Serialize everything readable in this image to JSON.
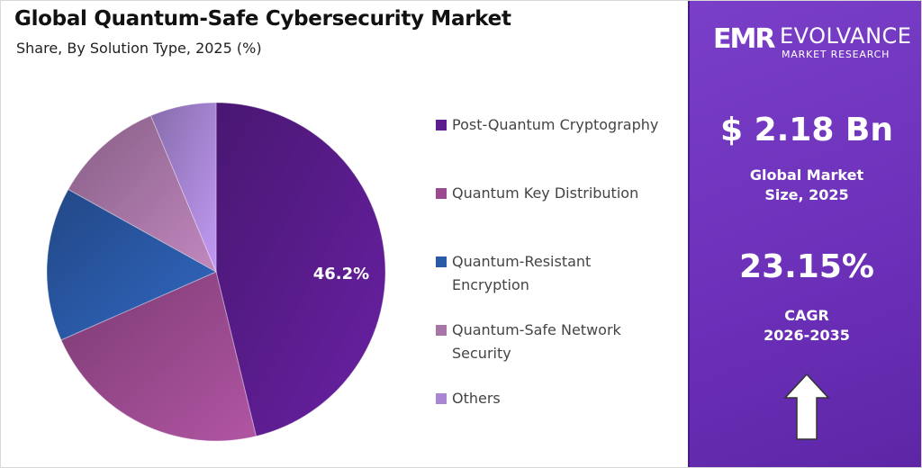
{
  "header": {
    "title": "Global Quantum-Safe Cybersecurity Market",
    "subtitle": "Share, By Solution Type, 2025 (%)"
  },
  "chart_data": {
    "type": "pie",
    "title": "Global Quantum-Safe Cybersecurity Market",
    "subtitle": "Share, By Solution Type, 2025 (%)",
    "categories": [
      "Post-Quantum Cryptography",
      "Quantum Key Distribution",
      "Quantum-Resistant Encryption",
      "Quantum-Safe Network Security",
      "Others"
    ],
    "values": [
      46.2,
      22.2,
      14.7,
      10.6,
      6.3
    ],
    "data_labels": [
      "46.2%",
      "",
      "",
      "",
      ""
    ],
    "colors": [
      "#5b1d8f",
      "#9a4a8e",
      "#2b5aa8",
      "#a876a6",
      "#a886d4"
    ],
    "legend_position": "right"
  },
  "legend": [
    {
      "label": "Post-Quantum Cryptography",
      "color": "#5b1d8f"
    },
    {
      "label": "Quantum Key Distribution",
      "color": "#9a4a8e"
    },
    {
      "label": "Quantum-Resistant Encryption",
      "color": "#2b5aa8"
    },
    {
      "label": "Quantum-Safe Network Security",
      "color": "#a876a6"
    },
    {
      "label": "Others",
      "color": "#a886d4"
    }
  ],
  "sidebar": {
    "logo": {
      "mark": "EMR",
      "name": "EVOLVANCE",
      "sub": "MARKET RESEARCH"
    },
    "market_size": "$ 2.18 Bn",
    "market_size_caption_1": "Global Market",
    "market_size_caption_2": "Size, 2025",
    "cagr": "23.15%",
    "cagr_caption_1": "CAGR",
    "cagr_caption_2": "2026-2035",
    "arrow_icon": "up-arrow-icon"
  }
}
